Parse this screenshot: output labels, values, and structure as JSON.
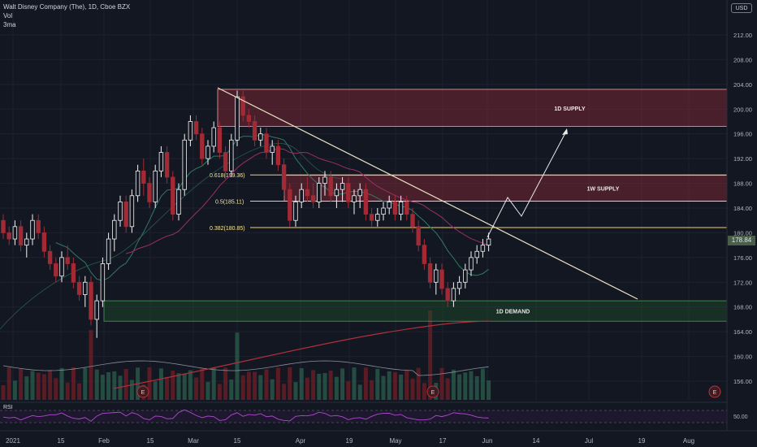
{
  "legend": {
    "title": "Walt Disney Company (The), 1D, Cboe BZX",
    "vol": "Vol",
    "ma": "3ma"
  },
  "currency": "USD",
  "last_price": "178.84",
  "rsi": {
    "label": "RSI",
    "level": "50.00"
  },
  "price_axis": [
    "212.00",
    "208.00",
    "204.00",
    "200.00",
    "196.00",
    "192.00",
    "188.00",
    "184.00",
    "180.00",
    "176.00",
    "172.00",
    "168.00",
    "164.00",
    "160.00",
    "156.00"
  ],
  "time_axis": [
    "2021",
    "15",
    "Feb",
    "15",
    "Mar",
    "15",
    "Apr",
    "19",
    "May",
    "17",
    "Jun",
    "14",
    "Jul",
    "19",
    "Aug"
  ],
  "zones": [
    {
      "label": "1D SUPPLY",
      "top": 203.2,
      "bottom": 197.2,
      "color": "#8b2a3a"
    },
    {
      "label": "1W SUPPLY",
      "top": 189.3,
      "bottom": 185.1,
      "color": "#8b2a3a"
    },
    {
      "label": "1D DEMAND",
      "top": 169.0,
      "bottom": 165.7,
      "color": "#1f4d2a"
    }
  ],
  "fib_levels": [
    {
      "label": "0.618(189.36)",
      "value": 189.36
    },
    {
      "label": "0.5(185.11)",
      "value": 185.11
    },
    {
      "label": "0.382(180.85)",
      "value": 180.85
    }
  ],
  "earnings_marker": "E",
  "colors": {
    "up": "#f5f5f5",
    "down": "#a32a34",
    "ma_fast": "#2f6b5a",
    "ma_slow": "#8a2a55",
    "ma_long": "#b0303a",
    "fib": "#f0d070"
  },
  "chart_data": {
    "type": "candlestick",
    "y_range": [
      152.5,
      215.5
    ],
    "candles": [
      [
        182,
        183,
        179,
        180
      ],
      [
        180,
        181,
        178,
        179
      ],
      [
        179,
        182,
        178,
        181
      ],
      [
        181,
        182,
        177,
        178
      ],
      [
        178,
        180,
        176,
        179
      ],
      [
        179,
        183,
        178,
        182
      ],
      [
        182,
        183,
        179,
        180
      ],
      [
        180,
        181,
        176,
        177
      ],
      [
        177,
        178,
        174,
        175
      ],
      [
        175,
        176,
        172,
        173
      ],
      [
        173,
        177,
        172,
        176
      ],
      [
        176,
        178,
        174,
        175
      ],
      [
        175,
        176,
        171,
        172
      ],
      [
        172,
        173,
        169,
        170
      ],
      [
        170,
        173,
        168,
        172
      ],
      [
        172,
        173,
        165,
        166
      ],
      [
        166,
        170,
        163,
        169
      ],
      [
        169,
        176,
        168,
        175
      ],
      [
        175,
        180,
        174,
        179
      ],
      [
        179,
        183,
        177,
        182
      ],
      [
        182,
        186,
        181,
        185
      ],
      [
        185,
        186,
        180,
        181
      ],
      [
        181,
        187,
        180,
        186
      ],
      [
        186,
        191,
        185,
        190
      ],
      [
        190,
        192,
        186,
        188
      ],
      [
        188,
        189,
        184,
        185
      ],
      [
        185,
        191,
        184,
        190
      ],
      [
        190,
        194,
        189,
        193
      ],
      [
        193,
        194,
        188,
        189
      ],
      [
        189,
        190,
        182,
        183
      ],
      [
        183,
        188,
        182,
        187
      ],
      [
        187,
        196,
        186,
        195
      ],
      [
        195,
        199,
        194,
        198
      ],
      [
        198,
        199,
        195,
        196
      ],
      [
        196,
        197,
        191,
        192
      ],
      [
        192,
        195,
        191,
        194
      ],
      [
        194,
        198,
        193,
        197
      ],
      [
        197,
        198,
        192,
        193
      ],
      [
        193,
        194,
        189,
        190
      ],
      [
        190,
        196,
        189,
        195
      ],
      [
        195,
        203,
        194,
        202
      ],
      [
        202,
        203,
        198,
        199
      ],
      [
        199,
        200,
        197,
        198
      ],
      [
        198,
        199,
        194,
        195
      ],
      [
        195,
        197,
        194,
        196
      ],
      [
        196,
        197,
        192,
        193
      ],
      [
        193,
        195,
        191,
        194
      ],
      [
        194,
        195,
        190,
        191
      ],
      [
        191,
        192,
        186,
        187
      ],
      [
        187,
        188,
        181,
        182
      ],
      [
        182,
        186,
        181,
        185
      ],
      [
        185,
        188,
        184,
        187
      ],
      [
        187,
        189,
        185,
        186
      ],
      [
        186,
        188,
        184,
        185
      ],
      [
        185,
        189,
        184,
        188
      ],
      [
        188,
        190,
        186,
        189
      ],
      [
        189,
        190,
        185,
        186
      ],
      [
        186,
        188,
        184,
        187
      ],
      [
        187,
        189,
        185,
        188
      ],
      [
        188,
        189,
        184,
        185
      ],
      [
        185,
        187,
        183,
        186
      ],
      [
        186,
        188,
        184,
        187
      ],
      [
        187,
        188,
        182,
        183
      ],
      [
        183,
        184,
        181,
        182
      ],
      [
        182,
        184,
        181,
        183
      ],
      [
        183,
        185,
        182,
        184
      ],
      [
        184,
        186,
        183,
        185
      ],
      [
        185,
        186,
        182,
        183
      ],
      [
        183,
        186,
        182,
        185
      ],
      [
        185,
        186,
        182,
        183
      ],
      [
        183,
        184,
        180,
        181
      ],
      [
        181,
        182,
        177,
        178
      ],
      [
        178,
        179,
        174,
        175
      ],
      [
        175,
        176,
        171,
        172
      ],
      [
        172,
        175,
        170,
        174
      ],
      [
        174,
        175,
        170,
        171
      ],
      [
        171,
        172,
        168,
        169
      ],
      [
        169,
        172,
        168,
        171
      ],
      [
        171,
        173,
        170,
        172
      ],
      [
        172,
        175,
        171,
        174
      ],
      [
        174,
        177,
        173,
        176
      ],
      [
        176,
        178,
        175,
        177
      ],
      [
        177,
        179,
        176,
        178
      ],
      [
        178,
        180,
        177,
        179
      ]
    ]
  }
}
